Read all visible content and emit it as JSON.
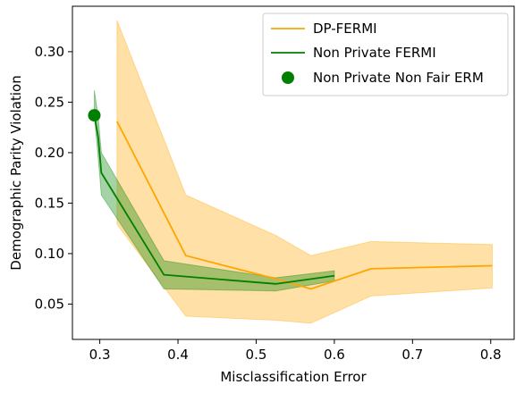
{
  "chart_data": {
    "type": "line",
    "title": "",
    "xlabel": "Misclassification Error",
    "ylabel": "Demographic Parity Violation",
    "xlim": [
      0.265,
      0.83
    ],
    "ylim": [
      0.015,
      0.345
    ],
    "xticks": [
      0.3,
      0.4,
      0.5,
      0.6,
      0.7,
      0.8
    ],
    "xtick_labels": [
      "0.3",
      "0.4",
      "0.5",
      "0.6",
      "0.7",
      "0.8"
    ],
    "yticks": [
      0.05,
      0.1,
      0.15,
      0.2,
      0.25,
      0.3
    ],
    "ytick_labels": [
      "0.05",
      "0.10",
      "0.15",
      "0.20",
      "0.25",
      "0.30"
    ],
    "grid": false,
    "legend_position": "top-right",
    "series": [
      {
        "name": "DP-FERMI",
        "color": "#ffa500",
        "band_color": "#ffa500",
        "x": [
          0.322,
          0.41,
          0.525,
          0.57,
          0.647,
          0.802
        ],
        "y": [
          0.231,
          0.098,
          0.075,
          0.065,
          0.085,
          0.088
        ],
        "upper": [
          0.331,
          0.158,
          0.118,
          0.098,
          0.112,
          0.109
        ],
        "lower": [
          0.129,
          0.038,
          0.034,
          0.031,
          0.058,
          0.066
        ]
      },
      {
        "name": "Non Private FERMI",
        "color": "#008000",
        "band_color": "#008000",
        "x": [
          0.293,
          0.298,
          0.302,
          0.382,
          0.525,
          0.6
        ],
        "y": [
          0.237,
          0.215,
          0.18,
          0.079,
          0.07,
          0.078
        ],
        "upper": [
          0.262,
          0.235,
          0.2,
          0.093,
          0.076,
          0.083
        ],
        "lower": [
          0.237,
          0.195,
          0.158,
          0.065,
          0.063,
          0.073
        ]
      }
    ],
    "points": [
      {
        "name": "Non Private Non Fair ERM",
        "color": "#008000",
        "x": 0.293,
        "y": 0.237
      }
    ]
  }
}
